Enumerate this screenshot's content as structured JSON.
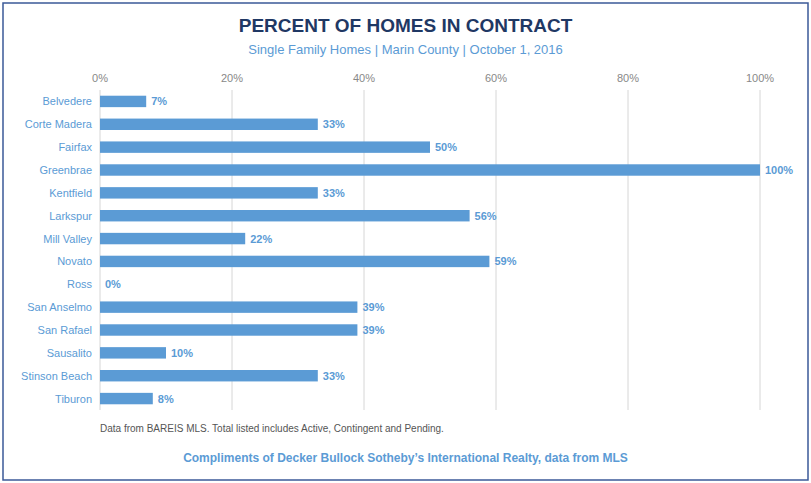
{
  "chart_data": {
    "type": "bar",
    "orientation": "horizontal",
    "title": "PERCENT OF HOMES IN CONTRACT",
    "subtitle": "Single Family Homes | Marin County | October 1, 2016",
    "annotations": [
      "Data from BAREIS MLS. Total listed includes Active, Contingent and Pending.",
      "Compliments of Decker Bullock Sotheby’s International Realty, data from MLS"
    ],
    "categories": [
      "Belvedere",
      "Corte Madera",
      "Fairfax",
      "Greenbrae",
      "Kentfield",
      "Larkspur",
      "Mill Valley",
      "Novato",
      "Ross",
      "San Anselmo",
      "San Rafael",
      "Sausalito",
      "Stinson Beach",
      "Tiburon"
    ],
    "values": [
      7,
      33,
      50,
      100,
      33,
      56,
      22,
      59,
      0,
      39,
      39,
      10,
      33,
      8
    ],
    "value_labels": [
      "7%",
      "33%",
      "50%",
      "100%",
      "33%",
      "56%",
      "22%",
      "59%",
      "0%",
      "39%",
      "39%",
      "10%",
      "33%",
      "8%"
    ],
    "data_labels": true,
    "color": "#5B9BD5",
    "xlim": [
      0,
      100
    ],
    "xticks": [
      {
        "value": 0,
        "label": "0%"
      },
      {
        "value": 20,
        "label": "20%"
      },
      {
        "value": 40,
        "label": "40%"
      },
      {
        "value": 60,
        "label": "60%"
      },
      {
        "value": 80,
        "label": "80%"
      },
      {
        "value": 100,
        "label": "100%"
      }
    ],
    "grid": true
  }
}
